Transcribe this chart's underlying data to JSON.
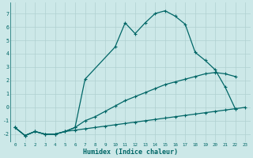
{
  "xlabel": "Humidex (Indice chaleur)",
  "xlim": [
    -0.5,
    23.5
  ],
  "ylim": [
    -2.6,
    7.8
  ],
  "xticks": [
    0,
    1,
    2,
    3,
    4,
    5,
    6,
    7,
    8,
    9,
    10,
    11,
    12,
    13,
    14,
    15,
    16,
    17,
    18,
    19,
    20,
    21,
    22,
    23
  ],
  "yticks": [
    -2,
    -1,
    0,
    1,
    2,
    3,
    4,
    5,
    6,
    7
  ],
  "bg_color": "#cce8e8",
  "line_color": "#006666",
  "grid_color": "#bbdddd",
  "line1_x": [
    0,
    1,
    2,
    3,
    4,
    5,
    6,
    7,
    10,
    11,
    12,
    13,
    14,
    15,
    16,
    17,
    18,
    19,
    20,
    21,
    22
  ],
  "line1_y": [
    -1.5,
    -2.1,
    -1.8,
    -2.0,
    -2.0,
    -1.8,
    -1.5,
    2.1,
    4.5,
    6.3,
    5.5,
    6.3,
    7.0,
    7.2,
    6.8,
    6.2,
    4.1,
    3.5,
    2.8,
    1.5,
    -0.1
  ],
  "line2_x": [
    0,
    1,
    2,
    3,
    4,
    5,
    6,
    7,
    8,
    9,
    10,
    11,
    12,
    13,
    14,
    15,
    16,
    17,
    18,
    19,
    20,
    21,
    22
  ],
  "line2_y": [
    -1.5,
    -2.1,
    -1.8,
    -2.0,
    -2.0,
    -1.8,
    -1.5,
    -1.0,
    -0.7,
    -0.3,
    0.1,
    0.5,
    0.8,
    1.1,
    1.4,
    1.7,
    1.9,
    2.1,
    2.3,
    2.5,
    2.6,
    2.5,
    2.3
  ],
  "line3_x": [
    0,
    1,
    2,
    3,
    4,
    5,
    6,
    7,
    8,
    9,
    10,
    11,
    12,
    13,
    14,
    15,
    16,
    17,
    18,
    19,
    20,
    21,
    22,
    23
  ],
  "line3_y": [
    -1.5,
    -2.1,
    -1.8,
    -2.0,
    -2.0,
    -1.8,
    -1.7,
    -1.6,
    -1.5,
    -1.4,
    -1.3,
    -1.2,
    -1.1,
    -1.0,
    -0.9,
    -0.8,
    -0.7,
    -0.6,
    -0.5,
    -0.4,
    -0.3,
    -0.2,
    -0.1,
    0.0
  ]
}
